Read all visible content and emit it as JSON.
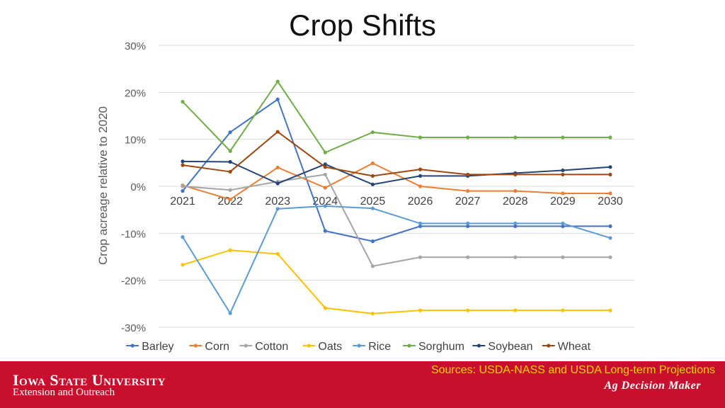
{
  "slide": {
    "title": "Crop Shifts"
  },
  "footer": {
    "university_name": "Iowa State University",
    "university_sub": "Extension and Outreach",
    "sources": "Sources: USDA-NASS and USDA Long-term Projections",
    "brand": "Ag Decision Maker",
    "background_color": "#c8102e",
    "sources_color": "#f6d000"
  },
  "chart_data": {
    "type": "line",
    "title": "",
    "xlabel": "",
    "ylabel": "Crop acreage relative to 2020",
    "x": [
      "2021",
      "2022",
      "2023",
      "2024",
      "2025",
      "2026",
      "2027",
      "2028",
      "2029",
      "2030"
    ],
    "ylim": [
      -30,
      30
    ],
    "yticks": [
      "-30%",
      "-20%",
      "-10%",
      "0%",
      "10%",
      "20%",
      "30%"
    ],
    "ytick_values": [
      -30,
      -20,
      -10,
      0,
      10,
      20,
      30
    ],
    "grid": true,
    "legend_position": "bottom",
    "series": [
      {
        "name": "Barley",
        "color": "#4472c4",
        "values": [
          -1,
          11.5,
          18.5,
          -9.5,
          -11.7,
          -8.5,
          -8.5,
          -8.5,
          -8.5,
          -8.5
        ]
      },
      {
        "name": "Corn",
        "color": "#ed7d31",
        "values": [
          0.2,
          -2.8,
          4,
          -0.3,
          4.9,
          0,
          -1,
          -1,
          -1.5,
          -1.5
        ]
      },
      {
        "name": "Cotton",
        "color": "#a5a5a5",
        "values": [
          0,
          -0.8,
          1,
          2.5,
          -17,
          -15.1,
          -15.1,
          -15.1,
          -15.1,
          -15.1
        ]
      },
      {
        "name": "Oats",
        "color": "#ffc000",
        "values": [
          -16.7,
          -13.6,
          -14.4,
          -25.9,
          -27.1,
          -26.4,
          -26.4,
          -26.4,
          -26.4,
          -26.4
        ]
      },
      {
        "name": "Rice",
        "color": "#5b9bd5",
        "values": [
          -10.8,
          -27,
          -4.8,
          -4.2,
          -4.7,
          -7.9,
          -7.9,
          -7.9,
          -7.9,
          -11
        ]
      },
      {
        "name": "Sorghum",
        "color": "#70ad47",
        "values": [
          18,
          7.5,
          22.3,
          7.2,
          11.5,
          10.4,
          10.4,
          10.4,
          10.4,
          10.4
        ]
      },
      {
        "name": "Soybean",
        "color": "#264478",
        "values": [
          5.3,
          5.2,
          0.6,
          4.7,
          0.4,
          2.2,
          2.2,
          2.8,
          3.4,
          4.1
        ]
      },
      {
        "name": "Wheat",
        "color": "#9e480e",
        "values": [
          4.5,
          3.1,
          11.6,
          4.1,
          2.2,
          3.6,
          2.5,
          2.5,
          2.5,
          2.5
        ]
      }
    ]
  }
}
